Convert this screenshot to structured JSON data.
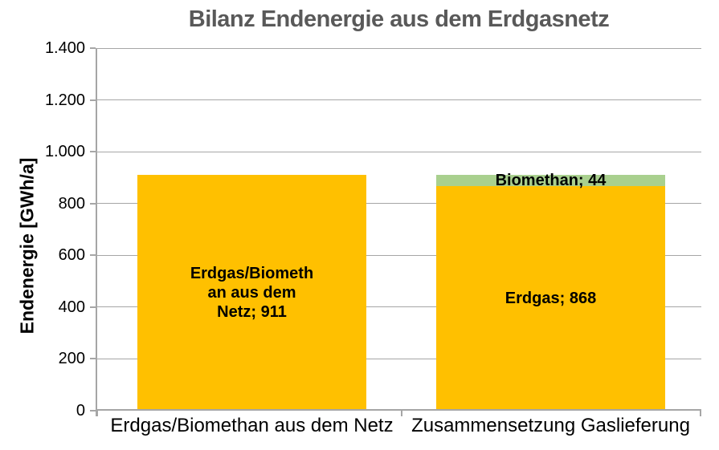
{
  "chart": {
    "title": "Bilanz Endenergie aus dem Erdgasnetz",
    "title_color": "#595959",
    "y_axis_title": "Endenergie [GWh/a]"
  },
  "chart_data": {
    "type": "bar",
    "stacked": true,
    "title": "Bilanz Endenergie aus dem Erdgasnetz",
    "ylabel": "Endenergie [GWh/a]",
    "xlabel": "",
    "ylim": [
      0,
      1400
    ],
    "grid": true,
    "legend": "none",
    "categories": [
      "Erdgas/Biomethan aus dem Netz",
      "Zusammensetzung Gaslieferung"
    ],
    "yticks": [
      {
        "value": 0,
        "label": "0"
      },
      {
        "value": 200,
        "label": "200"
      },
      {
        "value": 400,
        "label": "400"
      },
      {
        "value": 600,
        "label": "600"
      },
      {
        "value": 800,
        "label": "800"
      },
      {
        "value": 1000,
        "label": "1.000"
      },
      {
        "value": 1200,
        "label": "1.200"
      },
      {
        "value": 1400,
        "label": "1.400"
      }
    ],
    "bars": [
      {
        "category": "Erdgas/Biomethan aus dem Netz",
        "segments": [
          {
            "name": "Erdgas/Biomethan aus dem Netz",
            "value": 911,
            "color": "#FFC000",
            "label": "Erdgas/Biometh\nan aus dem\nNetz; 911"
          }
        ]
      },
      {
        "category": "Zusammensetzung Gaslieferung",
        "segments": [
          {
            "name": "Erdgas",
            "value": 868,
            "color": "#FFC000",
            "label": "Erdgas; 868"
          },
          {
            "name": "Biomethan",
            "value": 44,
            "color": "#A9D08E",
            "label": "Biomethan; 44"
          }
        ]
      }
    ],
    "colors": {
      "erdgas": "#FFC000",
      "biomethan": "#A9D08E",
      "axis_gray": "#A6A6A6",
      "label_text": "#000000"
    }
  }
}
